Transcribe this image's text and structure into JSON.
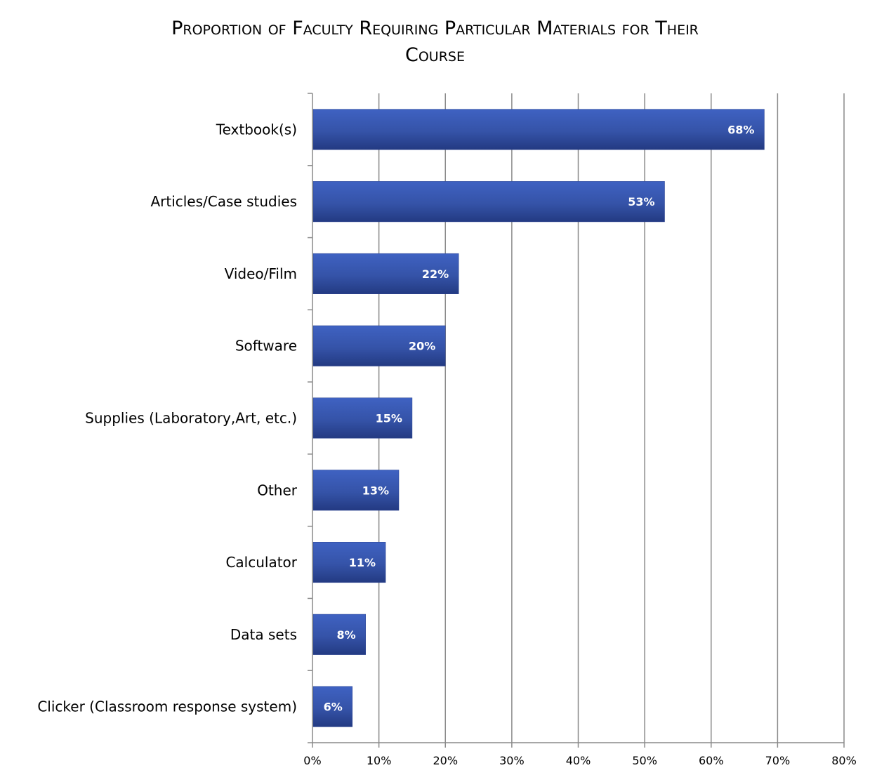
{
  "title_line1": "Proportion of Faculty Requiring Particular Materials for Their",
  "title_line2": "Course",
  "chart_data": {
    "type": "bar",
    "orientation": "horizontal",
    "title": "Proportion of Faculty Requiring Particular Materials for Their Course",
    "categories": [
      "Textbook(s)",
      "Articles/Case studies",
      "Video/Film",
      "Software",
      "Supplies (Laboratory,Art, etc.)",
      "Other",
      "Calculator",
      "Data sets",
      "Clicker (Classroom response system)"
    ],
    "values": [
      68,
      53,
      22,
      20,
      15,
      13,
      11,
      8,
      6
    ],
    "data_labels": [
      "68%",
      "53%",
      "22%",
      "20%",
      "15%",
      "13%",
      "11%",
      "8%",
      "6%"
    ],
    "xticks": [
      "0%",
      "10%",
      "20%",
      "30%",
      "40%",
      "50%",
      "60%",
      "70%",
      "80%"
    ],
    "xlim": [
      0,
      80
    ],
    "grid": "vertical",
    "bar_color": "#3553a8",
    "legend": "none"
  }
}
